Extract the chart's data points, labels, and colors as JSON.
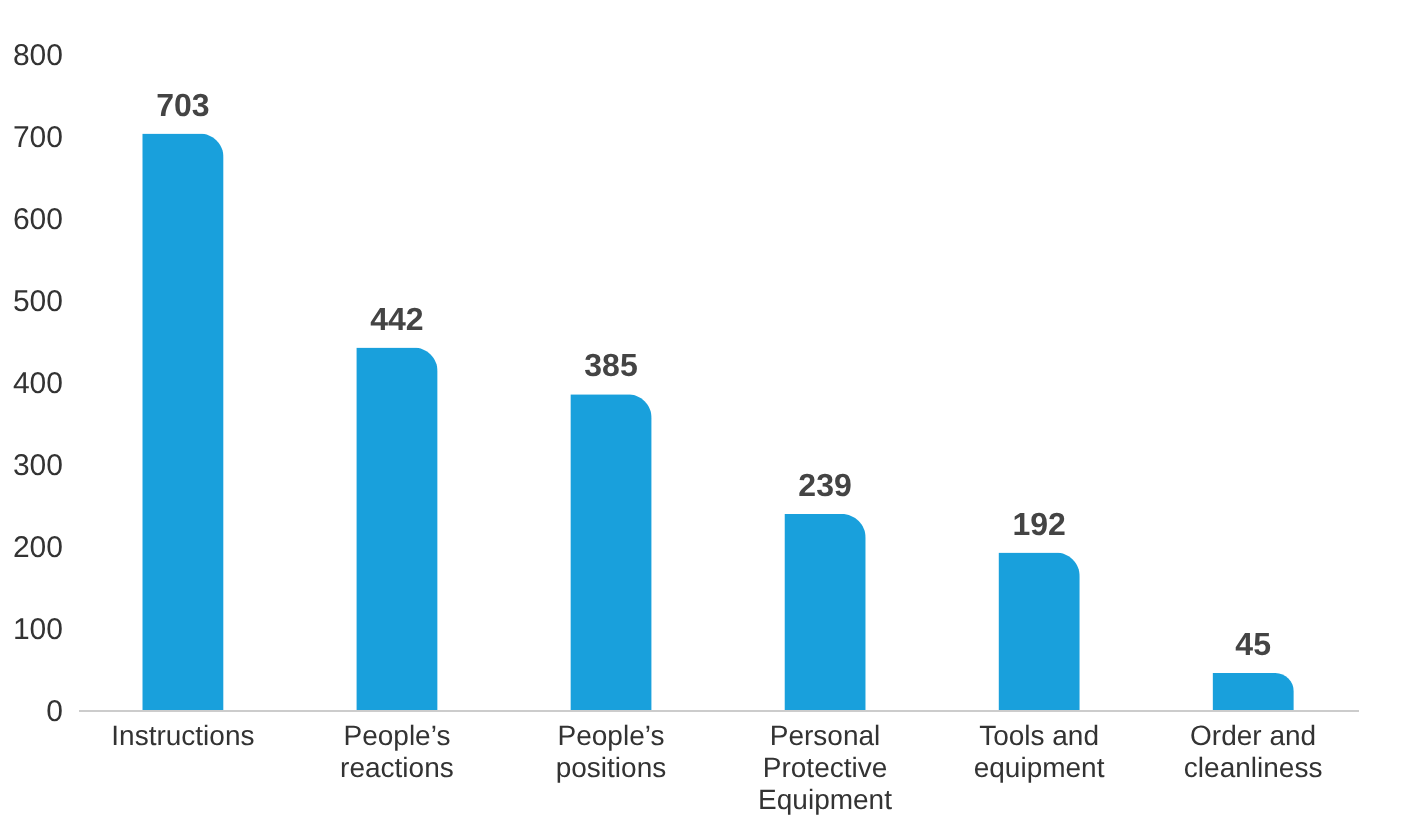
{
  "chart_data": {
    "type": "bar",
    "categories": [
      "Instructions",
      "People’s reactions",
      "People’s positions",
      "Personal Protective Equipment",
      "Tools and equipment",
      "Order and cleanliness"
    ],
    "values": [
      703,
      442,
      385,
      239,
      192,
      45
    ],
    "color": "#19a0dc",
    "ylim": [
      0,
      800
    ],
    "yticks": [
      0,
      100,
      200,
      300,
      400,
      500,
      600,
      700,
      800
    ],
    "grid": false,
    "data_labels": true
  }
}
